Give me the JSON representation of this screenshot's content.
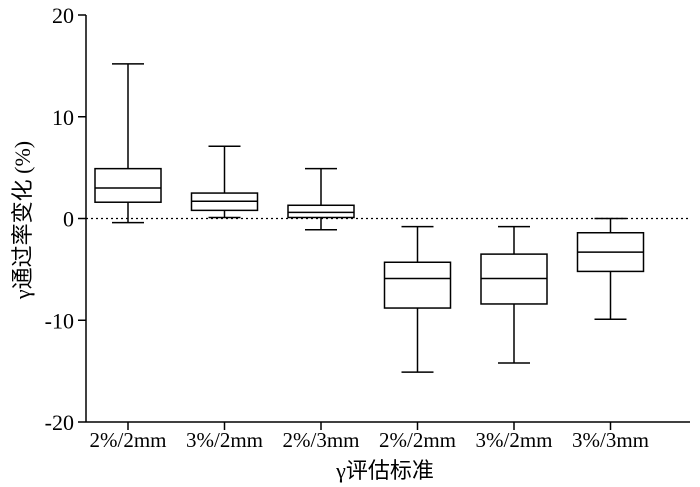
{
  "chart_data": {
    "type": "box",
    "ylabel": "γ通过率变化 (%)",
    "xlabel": "γ评估标准",
    "ylim": [
      -20,
      20
    ],
    "yticks": [
      20,
      10,
      0,
      -10,
      -20
    ],
    "reference_line": {
      "y": 0,
      "style": "dotted"
    },
    "categories": [
      "2%/2mm",
      "3%/2mm",
      "2%/3mm",
      "2%/2mm",
      "3%/2mm",
      "3%/3mm"
    ],
    "boxes": [
      {
        "min": -0.4,
        "q1": 1.6,
        "median": 3.0,
        "q3": 4.9,
        "max": 15.2
      },
      {
        "min": 0.1,
        "q1": 0.8,
        "median": 1.7,
        "q3": 2.5,
        "max": 7.1
      },
      {
        "min": -1.1,
        "q1": 0.1,
        "median": 0.6,
        "q3": 1.3,
        "max": 4.9
      },
      {
        "min": -15.1,
        "q1": -8.8,
        "median": -5.9,
        "q3": -4.3,
        "max": -0.8
      },
      {
        "min": -14.2,
        "q1": -8.4,
        "median": -5.9,
        "q3": -3.5,
        "max": -0.8
      },
      {
        "min": -9.9,
        "q1": -5.2,
        "median": -3.3,
        "q3": -1.4,
        "max": 0.0
      }
    ]
  }
}
